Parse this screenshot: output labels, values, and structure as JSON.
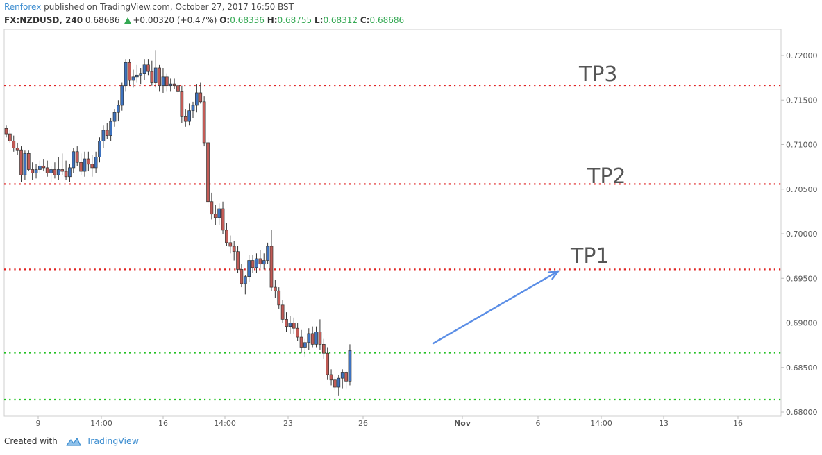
{
  "header": {
    "author": "Renforex",
    "published_text": "published on TradingView.com, October 27, 2017 16:50 BST",
    "symbol": "FX:NZDUSD, 240",
    "last_price": "0.68686",
    "change": "+0.00320 (+0.47%)",
    "open_label": "O:",
    "open": "0.68336",
    "high_label": "H:",
    "high": "0.68755",
    "low_label": "L:",
    "low": "0.68312",
    "close_label": "C:",
    "close": "0.68686"
  },
  "footer": {
    "created_with": "Created with",
    "brand": "TradingView"
  },
  "colors": {
    "up_candle": "#3d72bf",
    "down_candle": "#c25b56",
    "resistance_line": "#e02020",
    "support_line": "#20c020",
    "arrow": "#5b8ee6",
    "label": "#555555",
    "axis_text": "#555555"
  },
  "chart_data": {
    "type": "candlestick",
    "symbol": "FX:NZDUSD",
    "timeframe": "240",
    "y_axis": {
      "min": 0.68,
      "max": 0.722,
      "ticks": [
        "0.72000",
        "0.71500",
        "0.71000",
        "0.70500",
        "0.70000",
        "0.69500",
        "0.69000",
        "0.68500",
        "0.68000"
      ]
    },
    "x_axis": {
      "ticks": [
        "9",
        "14:00",
        "16",
        "14:00",
        "23",
        "26",
        "Nov",
        "6",
        "14:00",
        "13",
        "16"
      ]
    },
    "horizontal_lines": [
      {
        "label": "TP3",
        "value": 0.71665,
        "color": "red"
      },
      {
        "label": "TP2",
        "value": 0.70557,
        "color": "red"
      },
      {
        "label": "TP1",
        "value": 0.696,
        "color": "red"
      },
      {
        "label": "",
        "value": 0.68665,
        "color": "green"
      },
      {
        "label": "",
        "value": 0.6814,
        "color": "green"
      }
    ],
    "arrow": {
      "from_value": 0.6877,
      "to_value": 0.6958
    },
    "candles": [
      [
        0.7118,
        0.7122,
        0.7108,
        0.7112
      ],
      [
        0.7112,
        0.7116,
        0.7102,
        0.7104
      ],
      [
        0.7104,
        0.711,
        0.7092,
        0.7096
      ],
      [
        0.7096,
        0.7102,
        0.7088,
        0.7094
      ],
      [
        0.7094,
        0.7098,
        0.7058,
        0.7066
      ],
      [
        0.7066,
        0.7094,
        0.706,
        0.709
      ],
      [
        0.709,
        0.7094,
        0.707,
        0.7072
      ],
      [
        0.7072,
        0.708,
        0.706,
        0.7068
      ],
      [
        0.7068,
        0.7078,
        0.7062,
        0.7072
      ],
      [
        0.7072,
        0.7082,
        0.7068,
        0.7076
      ],
      [
        0.7076,
        0.7084,
        0.707,
        0.7074
      ],
      [
        0.7074,
        0.7082,
        0.7064,
        0.7068
      ],
      [
        0.7068,
        0.7076,
        0.7058,
        0.7072
      ],
      [
        0.7072,
        0.708,
        0.7062,
        0.7066
      ],
      [
        0.7066,
        0.7086,
        0.706,
        0.7072
      ],
      [
        0.7072,
        0.709,
        0.7066,
        0.707
      ],
      [
        0.707,
        0.7082,
        0.706,
        0.7064
      ],
      [
        0.7064,
        0.7078,
        0.7058,
        0.7074
      ],
      [
        0.7074,
        0.7096,
        0.7068,
        0.7092
      ],
      [
        0.7092,
        0.7098,
        0.7076,
        0.708
      ],
      [
        0.708,
        0.709,
        0.7066,
        0.707
      ],
      [
        0.707,
        0.7092,
        0.7064,
        0.7084
      ],
      [
        0.7084,
        0.7092,
        0.707,
        0.7078
      ],
      [
        0.7078,
        0.7088,
        0.7064,
        0.7074
      ],
      [
        0.7074,
        0.7092,
        0.7068,
        0.7086
      ],
      [
        0.7086,
        0.7108,
        0.708,
        0.7104
      ],
      [
        0.7104,
        0.7122,
        0.7096,
        0.7116
      ],
      [
        0.7116,
        0.7124,
        0.7106,
        0.711
      ],
      [
        0.711,
        0.713,
        0.7104,
        0.7126
      ],
      [
        0.7126,
        0.714,
        0.712,
        0.7136
      ],
      [
        0.7136,
        0.715,
        0.7126,
        0.7144
      ],
      [
        0.7144,
        0.717,
        0.7138,
        0.7166
      ],
      [
        0.7166,
        0.7196,
        0.716,
        0.7192
      ],
      [
        0.7192,
        0.7196,
        0.7166,
        0.7172
      ],
      [
        0.7172,
        0.7184,
        0.7164,
        0.7176
      ],
      [
        0.7176,
        0.719,
        0.717,
        0.7178
      ],
      [
        0.7178,
        0.7186,
        0.7168,
        0.718
      ],
      [
        0.718,
        0.7196,
        0.7172,
        0.719
      ],
      [
        0.719,
        0.7196,
        0.7178,
        0.7182
      ],
      [
        0.7182,
        0.7194,
        0.7166,
        0.717
      ],
      [
        0.717,
        0.7206,
        0.7164,
        0.7186
      ],
      [
        0.7186,
        0.719,
        0.716,
        0.7166
      ],
      [
        0.7166,
        0.7186,
        0.7158,
        0.7176
      ],
      [
        0.7176,
        0.718,
        0.716,
        0.7166
      ],
      [
        0.7166,
        0.7174,
        0.716,
        0.7168
      ],
      [
        0.7168,
        0.7174,
        0.7162,
        0.7166
      ],
      [
        0.7166,
        0.717,
        0.7156,
        0.716
      ],
      [
        0.716,
        0.7166,
        0.7124,
        0.7132
      ],
      [
        0.7132,
        0.714,
        0.712,
        0.7126
      ],
      [
        0.7126,
        0.7146,
        0.7122,
        0.7138
      ],
      [
        0.7138,
        0.7148,
        0.713,
        0.7144
      ],
      [
        0.7144,
        0.7168,
        0.7136,
        0.7158
      ],
      [
        0.7158,
        0.717,
        0.7146,
        0.7148
      ],
      [
        0.7148,
        0.7154,
        0.7098,
        0.7102
      ],
      [
        0.7102,
        0.7108,
        0.703,
        0.7036
      ],
      [
        0.7036,
        0.7046,
        0.7016,
        0.7022
      ],
      [
        0.7022,
        0.7032,
        0.701,
        0.7018
      ],
      [
        0.7018,
        0.7034,
        0.701,
        0.7028
      ],
      [
        0.7028,
        0.7036,
        0.7,
        0.7004
      ],
      [
        0.7004,
        0.7012,
        0.6986,
        0.699
      ],
      [
        0.699,
        0.6998,
        0.6978,
        0.6986
      ],
      [
        0.6986,
        0.6992,
        0.697,
        0.698
      ],
      [
        0.698,
        0.6986,
        0.6956,
        0.696
      ],
      [
        0.696,
        0.6966,
        0.694,
        0.6944
      ],
      [
        0.6944,
        0.6954,
        0.6932,
        0.6952
      ],
      [
        0.6952,
        0.6976,
        0.6946,
        0.697
      ],
      [
        0.697,
        0.6976,
        0.6956,
        0.6962
      ],
      [
        0.6962,
        0.6978,
        0.6956,
        0.6972
      ],
      [
        0.6972,
        0.6982,
        0.6962,
        0.6966
      ],
      [
        0.6966,
        0.6978,
        0.696,
        0.697
      ],
      [
        0.697,
        0.699,
        0.6966,
        0.6986
      ],
      [
        0.6986,
        0.7004,
        0.6936,
        0.694
      ],
      [
        0.694,
        0.6948,
        0.6928,
        0.6936
      ],
      [
        0.6936,
        0.694,
        0.6916,
        0.692
      ],
      [
        0.692,
        0.6926,
        0.69,
        0.6904
      ],
      [
        0.6904,
        0.6912,
        0.689,
        0.6896
      ],
      [
        0.6896,
        0.6908,
        0.6888,
        0.69
      ],
      [
        0.69,
        0.6906,
        0.6888,
        0.6894
      ],
      [
        0.6894,
        0.69,
        0.688,
        0.6884
      ],
      [
        0.6884,
        0.6892,
        0.6866,
        0.6872
      ],
      [
        0.6872,
        0.6882,
        0.6862,
        0.6878
      ],
      [
        0.6878,
        0.6894,
        0.687,
        0.6888
      ],
      [
        0.6888,
        0.6896,
        0.6872,
        0.6876
      ],
      [
        0.6876,
        0.6896,
        0.6872,
        0.689
      ],
      [
        0.689,
        0.6904,
        0.687,
        0.6876
      ],
      [
        0.6876,
        0.6882,
        0.686,
        0.6866
      ],
      [
        0.6866,
        0.6872,
        0.6836,
        0.6842
      ],
      [
        0.6842,
        0.6848,
        0.683,
        0.6836
      ],
      [
        0.6836,
        0.684,
        0.6824,
        0.6828
      ],
      [
        0.6828,
        0.6842,
        0.6818,
        0.6838
      ],
      [
        0.6838,
        0.6848,
        0.6826,
        0.6844
      ],
      [
        0.6844,
        0.6846,
        0.6826,
        0.6834
      ],
      [
        0.6834,
        0.6876,
        0.683,
        0.6869
      ]
    ]
  }
}
